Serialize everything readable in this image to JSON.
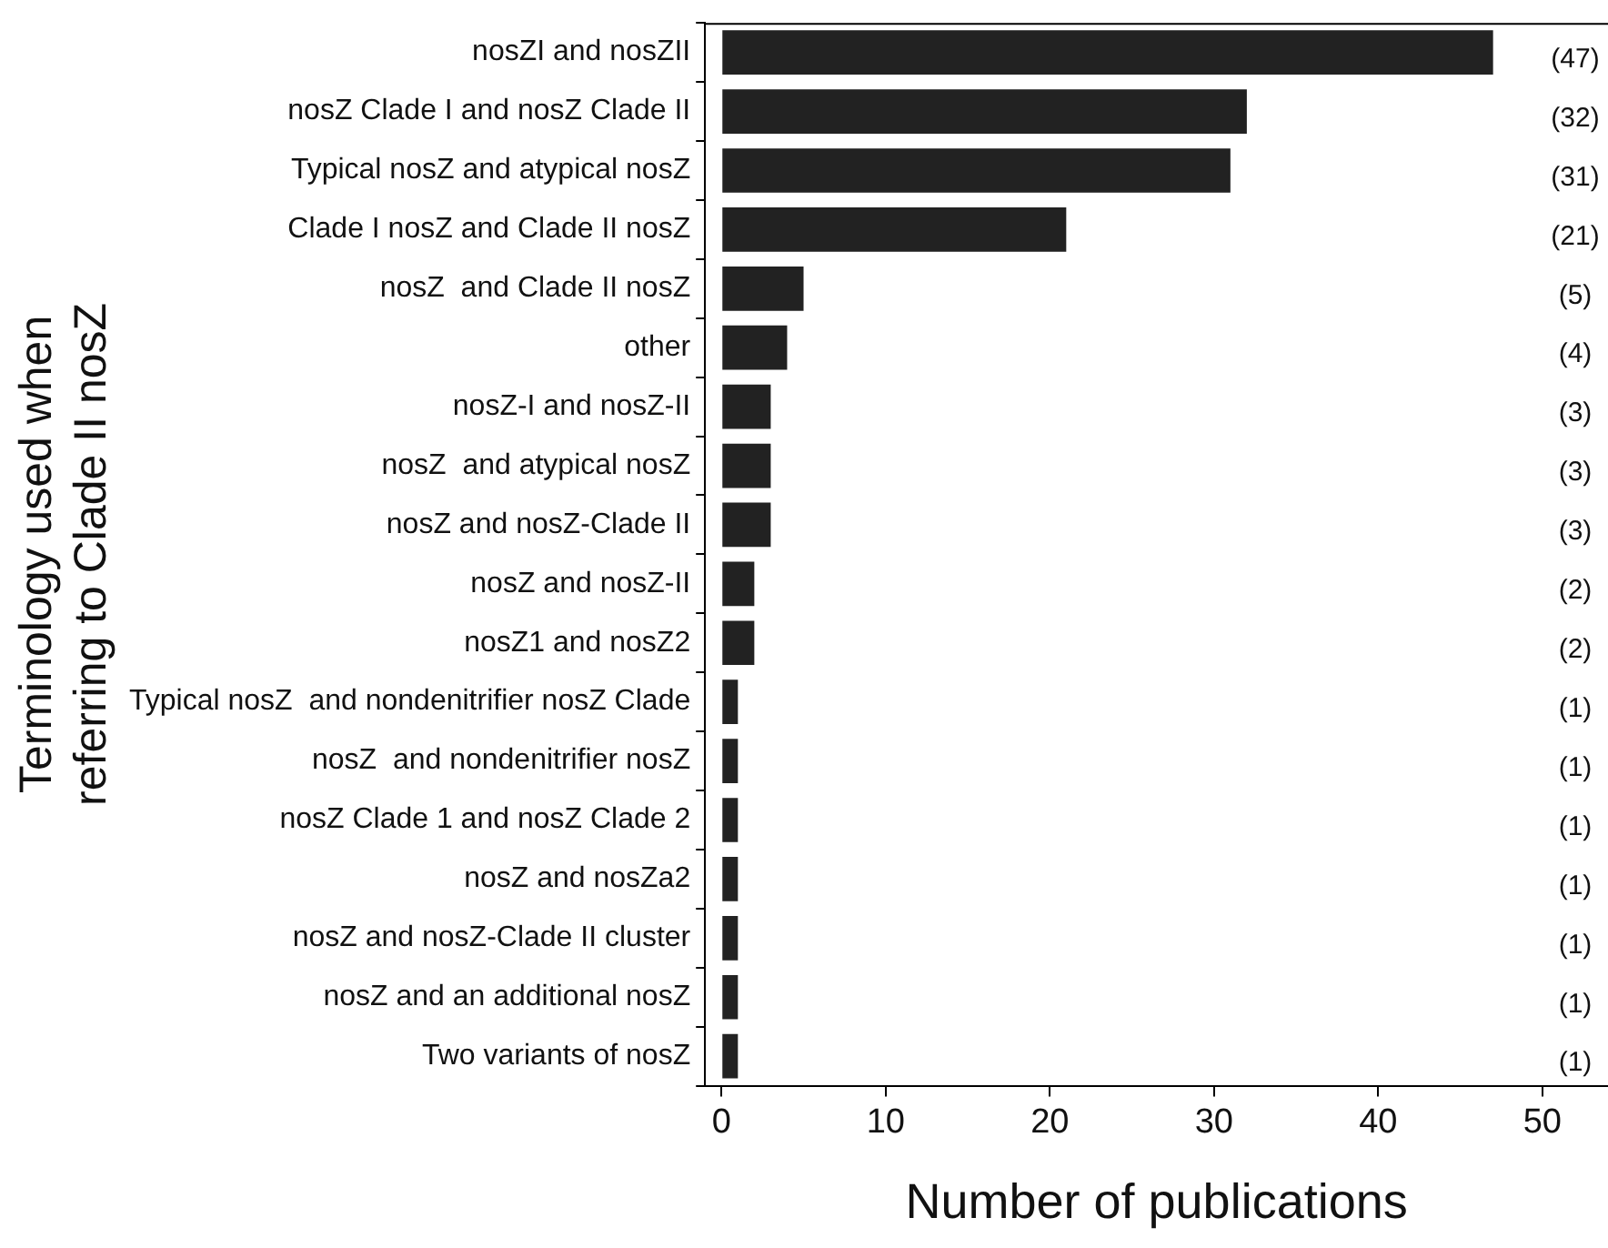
{
  "chart_data": {
    "type": "bar",
    "orientation": "horizontal",
    "xlabel": "Number of publications",
    "ylabel": "Terminology used when referring to Clade II nosZ",
    "categories": [
      "nosZI and nosZII",
      "nosZ Clade I and nosZ Clade II",
      "Typical nosZ and atypical nosZ",
      "Clade I nosZ and Clade II nosZ",
      "nosZ  and Clade II nosZ",
      "other",
      "nosZ-I and nosZ-II",
      "nosZ  and atypical nosZ",
      "nosZ and nosZ-Clade II",
      "nosZ and nosZ-II",
      "nosZ1 and nosZ2",
      "Typical nosZ  and nondenitrifier nosZ Clade",
      "nosZ  and nondenitrifier nosZ",
      "nosZ Clade 1 and nosZ Clade 2",
      "nosZ and nosZa2",
      "nosZ and nosZ-Clade II cluster",
      "nosZ and an additional nosZ",
      "Two variants of nosZ"
    ],
    "values": [
      47,
      32,
      31,
      21,
      5,
      4,
      3,
      3,
      3,
      2,
      2,
      1,
      1,
      1,
      1,
      1,
      1,
      1
    ],
    "value_labels": [
      "(47)",
      "(32)",
      "(31)",
      "(21)",
      "(5)",
      "(4)",
      "(3)",
      "(3)",
      "(3)",
      "(2)",
      "(2)",
      "(1)",
      "(1)",
      "(1)",
      "(1)",
      "(1)",
      "(1)",
      "(1)"
    ],
    "color": "#222222",
    "xlim": [
      -1,
      54
    ],
    "xticks": [
      0,
      10,
      20,
      30,
      40,
      50
    ],
    "grid": false,
    "legend": false
  }
}
